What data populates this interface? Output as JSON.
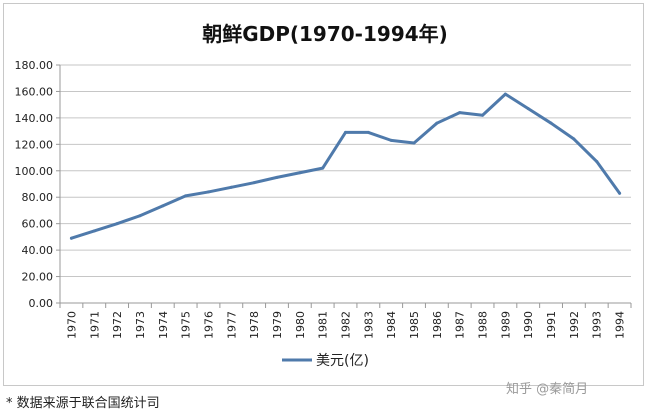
{
  "chart_data": {
    "type": "line",
    "title": "朝鲜GDP(1970-1994年)",
    "xlabel": "",
    "ylabel": "",
    "ylim": [
      0,
      180
    ],
    "yticks": [
      "0.00",
      "20.00",
      "40.00",
      "60.00",
      "80.00",
      "100.00",
      "120.00",
      "140.00",
      "160.00",
      "180.00"
    ],
    "categories": [
      "1970",
      "1971",
      "1972",
      "1973",
      "1974",
      "1975",
      "1976",
      "1977",
      "1978",
      "1979",
      "1980",
      "1981",
      "1982",
      "1983",
      "1984",
      "1985",
      "1986",
      "1987",
      "1988",
      "1989",
      "1990",
      "1991",
      "1992",
      "1993",
      "1994"
    ],
    "series": [
      {
        "name": "美元(亿)",
        "values": [
          49,
          54.5,
          60,
          66,
          73.5,
          81,
          84,
          87.5,
          91,
          95,
          98.5,
          102,
          129,
          129,
          123,
          121,
          136,
          144,
          142,
          158,
          147,
          136,
          124,
          107,
          83
        ],
        "color": "#4f7aab"
      }
    ],
    "grid": true,
    "legend_position": "bottom"
  },
  "footnote": "* 数据来源于联合国统计司",
  "watermark": "知乎 @秦简月"
}
